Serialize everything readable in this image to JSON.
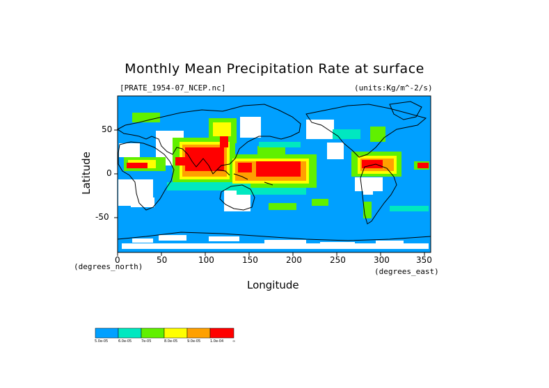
{
  "title": "Monthly Mean Precipitation Rate at surface",
  "file_label": "[PRATE_1954-07_NCEP.nc]",
  "units_label": "(units:Kg/m^-2/s)",
  "x_axis": {
    "label": "Longitude",
    "unit": "(degrees_east)",
    "ticks": [
      "0",
      "50",
      "100",
      "150",
      "200",
      "250",
      "300",
      "350"
    ],
    "range": [
      0,
      357.5
    ]
  },
  "y_axis": {
    "label": "Latitude",
    "unit": "(degrees_north)",
    "ticks": [
      "50",
      "0",
      "-50"
    ],
    "range": [
      -90,
      90
    ]
  },
  "colorbar": {
    "colors": [
      "#00a0ff",
      "#00e8c0",
      "#60f000",
      "#ffff00",
      "#ffa000",
      "#ff0000"
    ],
    "labels": [
      "5.0e-05",
      "6.0e-05",
      "7e-05",
      "8.0e-05",
      "9.0e-05",
      "1.0e-04",
      "∞"
    ]
  },
  "colors": {
    "background_field": "#00a0ff",
    "missing": "#ffffff",
    "coastline": "#000000"
  }
}
